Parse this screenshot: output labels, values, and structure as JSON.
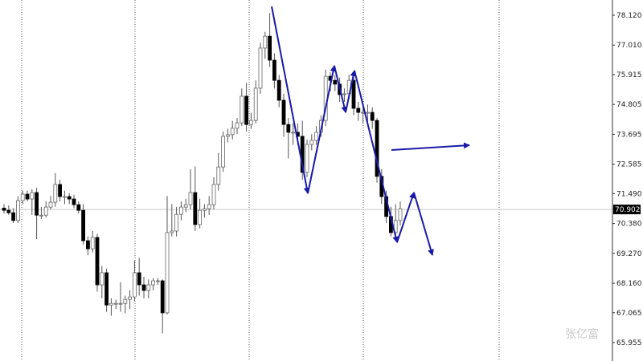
{
  "chart_data": {
    "type": "candlestick",
    "title": "",
    "xlabel": "",
    "ylabel": "",
    "ylim": [
      65.7,
      78.7
    ],
    "y_ticks": [
      "78.120",
      "77.010",
      "75.915",
      "74.805",
      "73.695",
      "72.585",
      "71.490",
      "70.380",
      "69.270",
      "68.160",
      "67.065",
      "65.955"
    ],
    "current_price": "70.902",
    "grid": "vertical dotted separators",
    "colors": {
      "bull_body": "#ffffff",
      "bear_body": "#000000",
      "wick": "#555555",
      "drawing": "#1a1aa8",
      "current_line": "#c8c8c8"
    },
    "candles_ohlc": [
      [
        70.95,
        71.1,
        70.75,
        70.87
      ],
      [
        70.87,
        71.05,
        70.7,
        70.78
      ],
      [
        70.78,
        70.95,
        70.4,
        70.49
      ],
      [
        70.49,
        71.4,
        70.4,
        71.23
      ],
      [
        71.23,
        71.6,
        71.1,
        71.47
      ],
      [
        71.47,
        71.6,
        71.2,
        71.29
      ],
      [
        71.29,
        71.65,
        70.7,
        71.53
      ],
      [
        71.53,
        71.7,
        69.8,
        70.69
      ],
      [
        70.69,
        71.0,
        70.55,
        70.69
      ],
      [
        70.69,
        71.2,
        70.6,
        70.99
      ],
      [
        70.99,
        71.4,
        70.9,
        71.17
      ],
      [
        71.17,
        72.25,
        71.0,
        71.83
      ],
      [
        71.83,
        72.0,
        71.2,
        71.38
      ],
      [
        71.38,
        71.6,
        71.1,
        71.38
      ],
      [
        71.38,
        71.5,
        71.1,
        71.29
      ],
      [
        71.29,
        71.45,
        70.95,
        71.08
      ],
      [
        71.08,
        71.2,
        70.75,
        70.87
      ],
      [
        70.87,
        71.1,
        69.6,
        69.74
      ],
      [
        69.74,
        69.9,
        69.2,
        69.44
      ],
      [
        69.44,
        70.1,
        69.3,
        69.86
      ],
      [
        69.86,
        70.0,
        67.85,
        68.1
      ],
      [
        68.1,
        68.8,
        67.6,
        68.55
      ],
      [
        68.55,
        68.7,
        67.1,
        67.35
      ],
      [
        67.35,
        67.6,
        66.95,
        67.41
      ],
      [
        67.41,
        67.55,
        67.2,
        67.41
      ],
      [
        67.41,
        68.2,
        67.1,
        67.41
      ],
      [
        67.41,
        67.7,
        67.05,
        67.56
      ],
      [
        67.56,
        67.9,
        67.2,
        67.65
      ],
      [
        67.65,
        69.0,
        67.5,
        68.55
      ],
      [
        68.55,
        69.1,
        67.7,
        68.1
      ],
      [
        68.1,
        68.4,
        67.6,
        67.89
      ],
      [
        67.89,
        68.3,
        67.6,
        68.1
      ],
      [
        68.1,
        68.35,
        67.9,
        68.25
      ],
      [
        68.25,
        68.35,
        68.1,
        68.25
      ],
      [
        68.25,
        68.3,
        66.3,
        67.06
      ],
      [
        67.06,
        71.4,
        67.0,
        70.04
      ],
      [
        70.04,
        71.1,
        69.9,
        70.1
      ],
      [
        70.1,
        71.0,
        69.9,
        70.72
      ],
      [
        70.72,
        71.2,
        70.5,
        70.99
      ],
      [
        70.99,
        71.3,
        70.8,
        71.08
      ],
      [
        71.08,
        72.4,
        70.9,
        71.53
      ],
      [
        71.53,
        72.5,
        70.1,
        70.34
      ],
      [
        70.34,
        71.3,
        70.2,
        70.87
      ],
      [
        70.87,
        71.1,
        70.6,
        70.93
      ],
      [
        70.93,
        71.4,
        70.7,
        71.08
      ],
      [
        71.08,
        72.1,
        70.9,
        71.83
      ],
      [
        71.83,
        73.0,
        71.6,
        72.48
      ],
      [
        72.48,
        73.8,
        72.3,
        73.62
      ],
      [
        73.62,
        73.9,
        73.4,
        73.68
      ],
      [
        73.68,
        74.2,
        73.5,
        73.92
      ],
      [
        73.92,
        74.3,
        73.7,
        74.12
      ],
      [
        74.12,
        75.4,
        74.0,
        75.11
      ],
      [
        75.11,
        75.6,
        73.8,
        74.06
      ],
      [
        74.06,
        74.5,
        73.9,
        74.21
      ],
      [
        74.21,
        75.7,
        74.1,
        75.41
      ],
      [
        75.41,
        77.1,
        75.2,
        76.9
      ],
      [
        76.9,
        77.5,
        76.5,
        77.34
      ],
      [
        77.34,
        78.2,
        76.2,
        76.45
      ],
      [
        76.45,
        76.7,
        75.4,
        75.7
      ],
      [
        75.7,
        75.9,
        74.7,
        74.96
      ],
      [
        74.96,
        75.2,
        73.6,
        74.06
      ],
      [
        74.06,
        74.3,
        72.8,
        73.77
      ],
      [
        73.77,
        74.1,
        73.3,
        73.77
      ],
      [
        73.77,
        74.1,
        73.3,
        73.62
      ],
      [
        73.62,
        74.2,
        72.0,
        72.28
      ],
      [
        72.28,
        73.5,
        72.1,
        73.32
      ],
      [
        73.32,
        73.7,
        73.1,
        73.47
      ],
      [
        73.47,
        74.0,
        73.3,
        73.77
      ],
      [
        73.77,
        74.4,
        73.6,
        74.21
      ],
      [
        74.21,
        76.1,
        74.0,
        75.85
      ],
      [
        75.85,
        76.0,
        75.3,
        75.7
      ],
      [
        75.7,
        75.9,
        75.3,
        75.56
      ],
      [
        75.56,
        75.8,
        74.9,
        75.17
      ],
      [
        75.17,
        75.4,
        74.9,
        75.2
      ],
      [
        75.2,
        75.9,
        75.0,
        75.7
      ],
      [
        75.7,
        75.9,
        74.4,
        74.66
      ],
      [
        74.66,
        74.9,
        74.2,
        74.51
      ],
      [
        74.51,
        74.8,
        74.1,
        74.51
      ],
      [
        74.51,
        74.8,
        74.0,
        74.51
      ],
      [
        74.51,
        74.7,
        73.9,
        74.21
      ],
      [
        74.21,
        74.3,
        71.9,
        72.13
      ],
      [
        72.13,
        72.4,
        71.1,
        71.38
      ],
      [
        71.38,
        71.6,
        70.4,
        70.64
      ],
      [
        70.64,
        71.0,
        69.9,
        70.04
      ],
      [
        70.04,
        71.1,
        69.9,
        70.49
      ],
      [
        70.49,
        71.2,
        70.3,
        70.93
      ]
    ]
  },
  "watermark": "张亿富"
}
